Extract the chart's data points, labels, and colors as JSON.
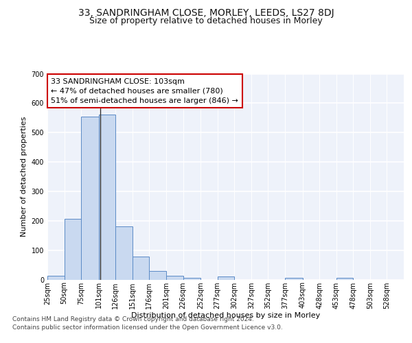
{
  "title": "33, SANDRINGHAM CLOSE, MORLEY, LEEDS, LS27 8DJ",
  "subtitle": "Size of property relative to detached houses in Morley",
  "xlabel": "Distribution of detached houses by size in Morley",
  "ylabel": "Number of detached properties",
  "footnote1": "Contains HM Land Registry data © Crown copyright and database right 2024.",
  "footnote2": "Contains public sector information licensed under the Open Government Licence v3.0.",
  "annotation_line1": "33 SANDRINGHAM CLOSE: 103sqm",
  "annotation_line2": "← 47% of detached houses are smaller (780)",
  "annotation_line3": "51% of semi-detached houses are larger (846) →",
  "subject_value": 103,
  "bar_left_edges": [
    25,
    50,
    75,
    101,
    126,
    151,
    176,
    201,
    226,
    252,
    277,
    302,
    327,
    352,
    377,
    403,
    428,
    453,
    478,
    503,
    528
  ],
  "bar_heights": [
    12,
    207,
    554,
    561,
    182,
    78,
    30,
    13,
    7,
    0,
    10,
    0,
    0,
    0,
    5,
    0,
    0,
    7,
    0,
    0,
    0
  ],
  "bar_color": "#c9d9f0",
  "bar_edge_color": "#5a8ac6",
  "vline_x": 103,
  "vline_color": "#333333",
  "ylim": [
    0,
    700
  ],
  "yticks": [
    0,
    100,
    200,
    300,
    400,
    500,
    600,
    700
  ],
  "x_tick_labels": [
    "25sqm",
    "50sqm",
    "75sqm",
    "101sqm",
    "126sqm",
    "151sqm",
    "176sqm",
    "201sqm",
    "226sqm",
    "252sqm",
    "277sqm",
    "302sqm",
    "327sqm",
    "352sqm",
    "377sqm",
    "403sqm",
    "428sqm",
    "453sqm",
    "478sqm",
    "503sqm",
    "528sqm"
  ],
  "background_color": "#eef2fa",
  "grid_color": "#ffffff",
  "annotation_box_color": "#ffffff",
  "annotation_box_edge": "#cc0000",
  "title_fontsize": 10,
  "subtitle_fontsize": 9,
  "axis_label_fontsize": 8,
  "tick_fontsize": 7,
  "annotation_fontsize": 8,
  "footnote_fontsize": 6.5
}
